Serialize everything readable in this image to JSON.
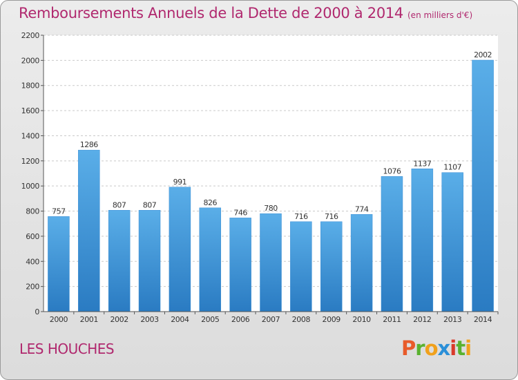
{
  "chart_data": {
    "type": "bar",
    "title": "Remboursements Annuels de la Dette de 2000 à 2014",
    "subtitle": "(en milliers d'€)",
    "categories": [
      "2000",
      "2001",
      "2002",
      "2003",
      "2004",
      "2005",
      "2006",
      "2007",
      "2008",
      "2009",
      "2010",
      "2011",
      "2012",
      "2013",
      "2014"
    ],
    "values": [
      757,
      1286,
      807,
      807,
      991,
      826,
      746,
      780,
      716,
      716,
      774,
      1076,
      1137,
      1107,
      2002
    ],
    "yticks": [
      0,
      200,
      400,
      600,
      800,
      1000,
      1200,
      1400,
      1600,
      1800,
      2000,
      2200
    ],
    "ylim": [
      0,
      2200
    ],
    "grid": true,
    "bar_color": "#3d8fd6"
  },
  "location": "LES HOUCHES",
  "logo": {
    "letters": [
      "P",
      "r",
      "o",
      "x",
      "i",
      "t",
      "i"
    ],
    "colors": [
      "#e85b2a",
      "#5ab22f",
      "#f0a11c",
      "#2a8fd8",
      "#d93a2a",
      "#5ab22f",
      "#f0a11c"
    ]
  }
}
